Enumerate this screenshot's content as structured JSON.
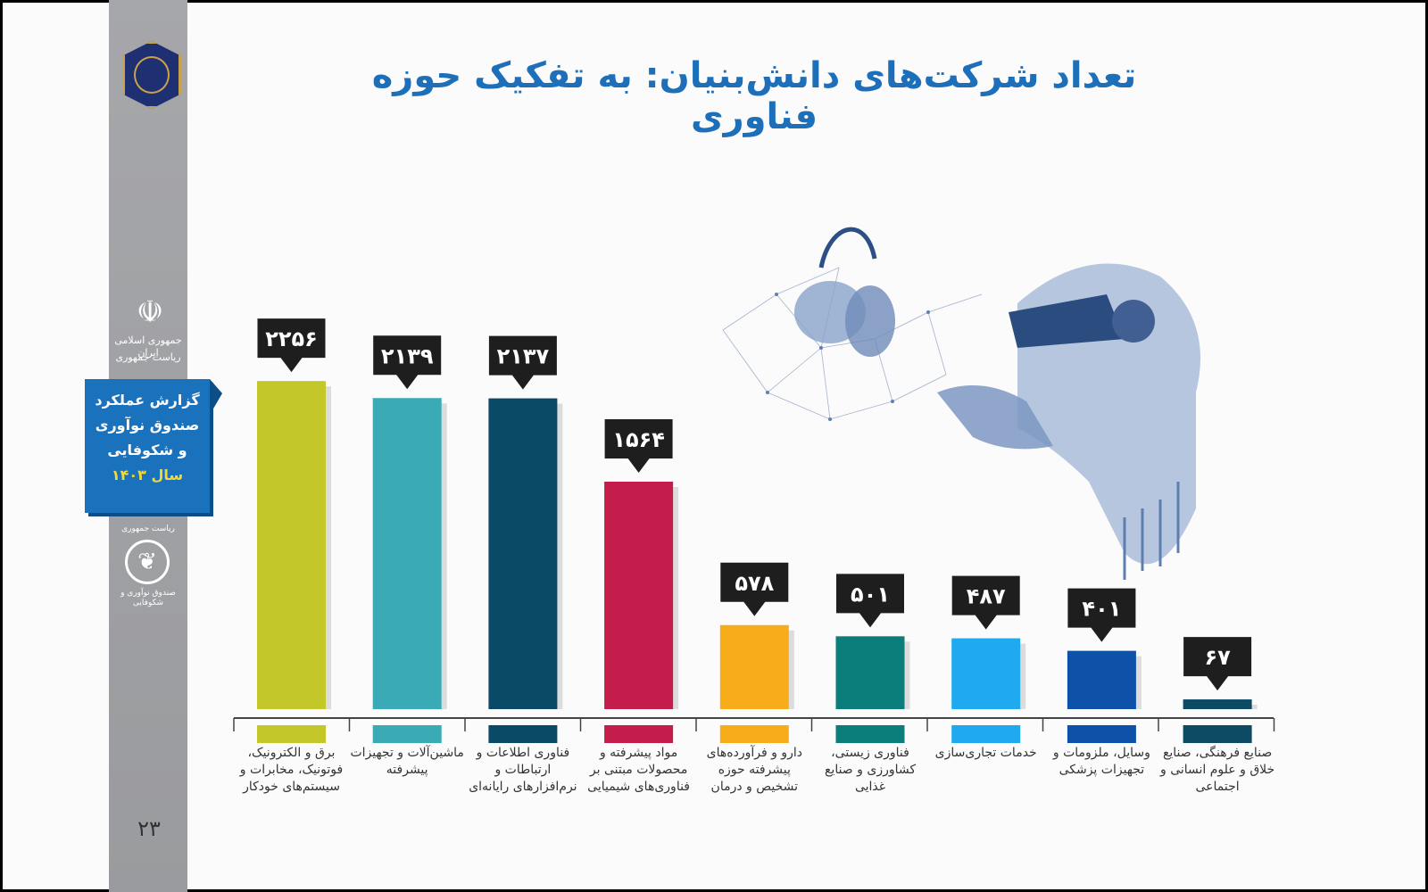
{
  "title": "تعداد شرکت‌های دانش‌بنیان: به تفکیک حوزه فناوری",
  "sidebar": {
    "emblem_text_1": "جمهوری اسلامی ایران",
    "emblem_text_2": "ریاست جمهوری",
    "report_lines": [
      "گزارش عملکرد",
      "صندوق نوآوری",
      "و شکوفایی"
    ],
    "report_year": "سال ۱۴۰۳",
    "fund_text_1": "ریاست جمهوری",
    "fund_text_2": "صندوق نوآوری و شکوفایی",
    "page_number": "۲۳"
  },
  "chart_data": {
    "type": "bar",
    "title": "تعداد شرکت‌های دانش‌بنیان: به تفکیک حوزه فناوری",
    "categories": [
      "برق و الکترونیک، فوتونیک، مخابرات و سیستم‌های خودکار",
      "ماشین‌آلات و تجهیزات پیشرفته",
      "فناوری اطلاعات و ارتباطات و نرم‌افزارهای رایانه‌ای",
      "مواد پیشرفته و محصولات مبتنی بر فناوری‌های شیمیایی",
      "دارو و فرآورده‌های پیشرفته حوزه تشخیص و درمان",
      "فناوری زیستی، کشاورزی و صنایع غذایی",
      "خدمات تجاری‌سازی",
      "وسایل، ملزومات و تجهیزات پزشکی",
      "صنایع فرهنگی، صنایع خلاق و علوم انسانی و اجتماعی"
    ],
    "values": [
      2256,
      2139,
      2137,
      1564,
      578,
      501,
      487,
      401,
      67
    ],
    "value_labels": [
      "۲۲۵۶",
      "۲۱۳۹",
      "۲۱۳۷",
      "۱۵۶۴",
      "۵۷۸",
      "۵۰۱",
      "۴۸۷",
      "۴۰۱",
      "۶۷"
    ],
    "colors": [
      "#c3c72a",
      "#3aaab6",
      "#0b4a66",
      "#c41c4b",
      "#f7ad1a",
      "#0b7d7b",
      "#1faaf0",
      "#0d52a8",
      "#0d4a64"
    ],
    "ylim": [
      0,
      2300
    ],
    "grid": false,
    "legend": "none"
  }
}
